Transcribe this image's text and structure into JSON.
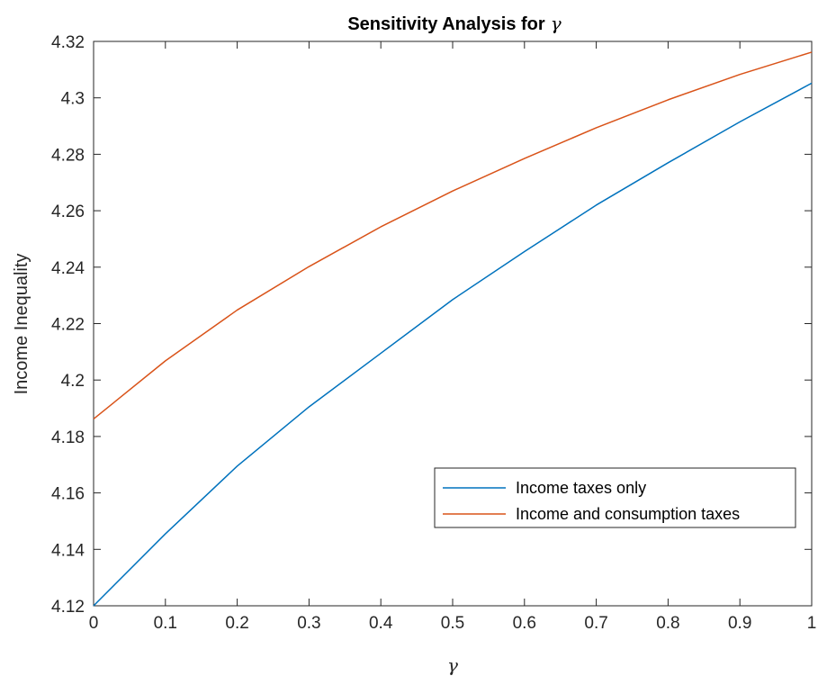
{
  "chart_data": {
    "type": "line",
    "title": "Sensitivity Analysis for",
    "title_symbol": "γ",
    "xlabel": "γ",
    "ylabel": "Income Inequality",
    "xlim": [
      0,
      1
    ],
    "ylim": [
      4.12,
      4.32
    ],
    "x": [
      0,
      0.1,
      0.2,
      0.3,
      0.4,
      0.5,
      0.6,
      0.7,
      0.8,
      0.9,
      1
    ],
    "x_tick_labels": [
      "0",
      "0.1",
      "0.2",
      "0.3",
      "0.4",
      "0.5",
      "0.6",
      "0.7",
      "0.8",
      "0.9",
      "1"
    ],
    "y_ticks": [
      4.12,
      4.14,
      4.16,
      4.18,
      4.2,
      4.22,
      4.24,
      4.26,
      4.28,
      4.3,
      4.32
    ],
    "y_tick_labels": [
      "4.12",
      "4.14",
      "4.16",
      "4.18",
      "4.2",
      "4.22",
      "4.24",
      "4.26",
      "4.28",
      "4.3",
      "4.32"
    ],
    "grid": false,
    "legend_position": "lower-right",
    "series": [
      {
        "name": "Income taxes only",
        "color": "#0072BD",
        "values": [
          4.12,
          4.1455,
          4.1695,
          4.1905,
          4.2095,
          4.2285,
          4.2455,
          4.262,
          4.277,
          4.2915,
          4.3052
        ]
      },
      {
        "name": "Income and consumption taxes",
        "color": "#D95319",
        "values": [
          4.1862,
          4.2068,
          4.2248,
          4.2402,
          4.2543,
          4.267,
          4.2785,
          4.2894,
          4.2993,
          4.3083,
          4.3162
        ]
      }
    ]
  }
}
